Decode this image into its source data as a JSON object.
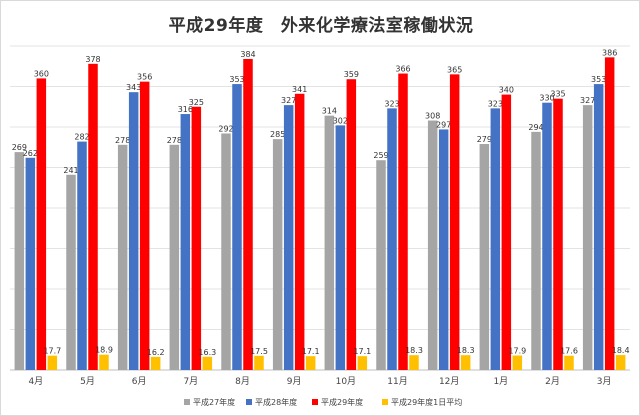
{
  "chart_data": {
    "type": "bar",
    "title": "平成29年度　外来化学療法室稼働状況",
    "categories": [
      "4月",
      "5月",
      "6月",
      "7月",
      "8月",
      "9月",
      "10月",
      "11月",
      "12月",
      "1月",
      "2月",
      "3月"
    ],
    "series": [
      {
        "name": "平成27年度",
        "color": "#a5a5a5",
        "values": [
          269,
          241,
          278,
          278,
          292,
          285,
          314,
          259,
          308,
          279,
          294,
          327
        ],
        "labels": [
          "269",
          "241",
          "278",
          "278",
          "292",
          "285",
          "314",
          "259",
          "308",
          "279",
          "294",
          "327"
        ]
      },
      {
        "name": "平成28年度",
        "color": "#4472c4",
        "values": [
          262,
          282,
          343,
          316,
          353,
          327,
          302,
          323,
          297,
          323,
          330,
          353
        ],
        "labels": [
          "262",
          "282",
          "343",
          "316",
          "353",
          "327",
          "302",
          "323",
          "297",
          "323",
          "330",
          "353"
        ]
      },
      {
        "name": "平成29年度",
        "color": "#ff0000",
        "values": [
          360,
          378,
          356,
          325,
          384,
          341,
          359,
          366,
          365,
          340,
          335,
          386
        ],
        "labels": [
          "360",
          "378",
          "356",
          "325",
          "384",
          "341",
          "359",
          "366",
          "365",
          "340",
          "335",
          "386"
        ]
      },
      {
        "name": "平成29年度1日平均",
        "color": "#ffc000",
        "values": [
          17.7,
          18.9,
          16.2,
          16.3,
          17.5,
          17.1,
          17.1,
          18.3,
          18.3,
          17.9,
          17.6,
          18.4
        ],
        "labels": [
          "17.7",
          "18.9",
          "16.2",
          "16.3",
          "17.5",
          "17.1",
          "17.1",
          "18.3",
          "18.3",
          "17.9",
          "17.6",
          "18.4"
        ]
      }
    ],
    "ylim": [
      0,
      400
    ],
    "grid": true,
    "legend_position": "bottom"
  }
}
